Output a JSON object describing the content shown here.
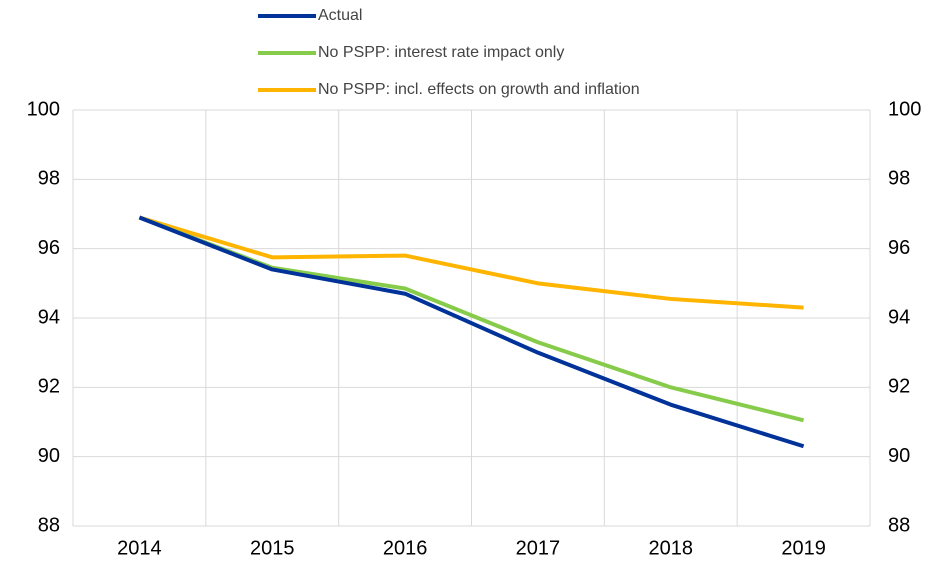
{
  "chart_data": {
    "type": "line",
    "categories": [
      "2014",
      "2015",
      "2016",
      "2017",
      "2018",
      "2019"
    ],
    "series": [
      {
        "name": "Actual",
        "color": "#003299",
        "values": [
          96.9,
          95.4,
          94.7,
          93.0,
          91.5,
          90.3
        ]
      },
      {
        "name": "No PSPP: interest rate impact only",
        "color": "#86cb4a",
        "values": [
          96.9,
          95.45,
          94.85,
          93.3,
          92.0,
          91.05
        ]
      },
      {
        "name": "No PSPP: incl. effects on growth and inflation",
        "color": "#ffb400",
        "values": [
          96.9,
          95.75,
          95.8,
          95.0,
          94.55,
          94.3
        ]
      }
    ],
    "ylim": [
      88,
      100
    ],
    "yticks": [
      88,
      90,
      92,
      94,
      96,
      98,
      100
    ],
    "y2lim": [
      88,
      100
    ],
    "y2ticks": [
      88,
      90,
      92,
      94,
      96,
      98,
      100
    ],
    "grid": true,
    "legend": "top"
  }
}
